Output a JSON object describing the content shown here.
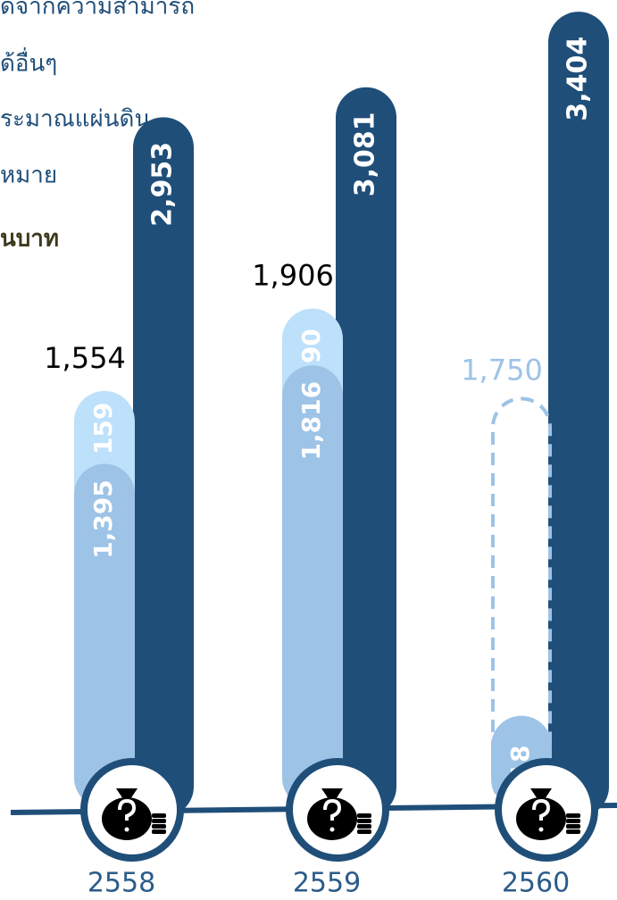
{
  "legend_texts": [
    "ดจากความสามารถ",
    "ด้อื่นๆ",
    "ระมาณแผ่นดิน",
    "หมาย",
    "นบาท"
  ],
  "chart_data": {
    "type": "bar",
    "categories": [
      "2558",
      "2559",
      "2560"
    ],
    "series": [
      {
        "color": "#1f4e79",
        "values": [
          2953,
          3081,
          3404
        ],
        "value_labels": [
          "2,953",
          "3,081",
          "3,404"
        ]
      },
      {
        "color": "#9dc3e6",
        "values": [
          1395,
          1816,
          318
        ],
        "value_labels": [
          "1,395",
          "1,816",
          "318"
        ]
      },
      {
        "color": "#bde0fb",
        "values": [
          159,
          90,
          null
        ],
        "value_labels": [
          "159",
          "90",
          null
        ]
      }
    ],
    "totals": {
      "values": [
        1554,
        1906,
        1750
      ],
      "value_labels": [
        "1,554",
        "1,906",
        "1,750"
      ],
      "colors": [
        "#000000",
        "#000000",
        "#9dc3e6"
      ]
    }
  }
}
